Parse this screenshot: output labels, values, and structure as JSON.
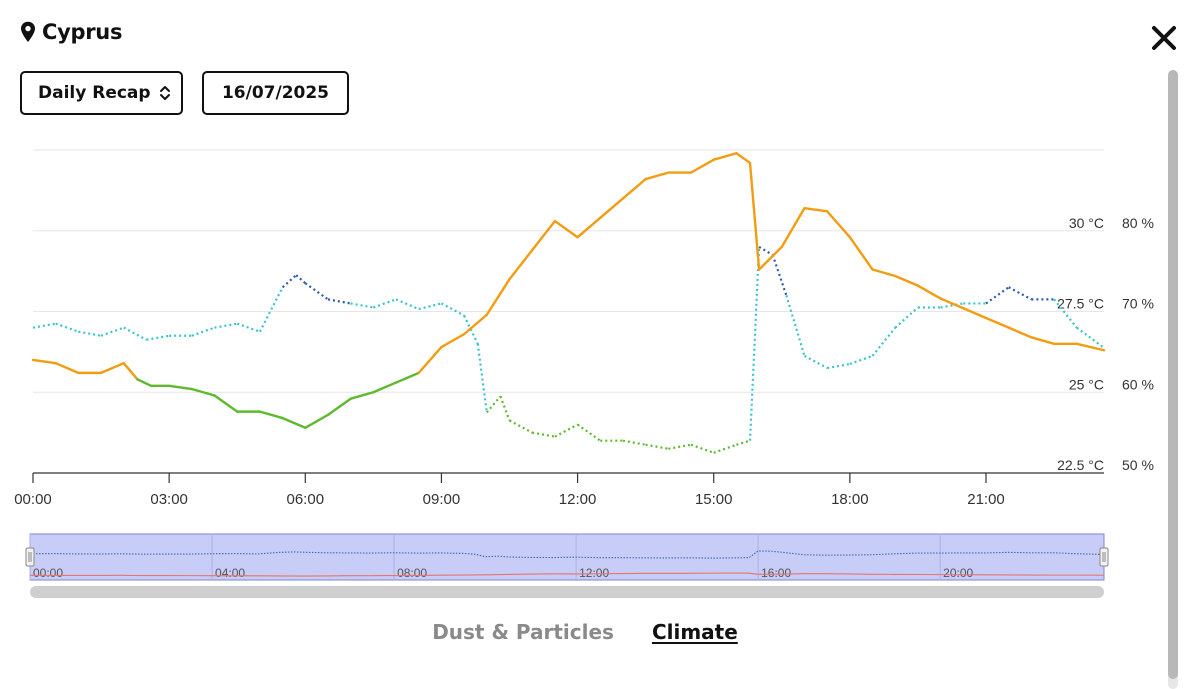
{
  "header": {
    "location": "Cyprus",
    "icon": "map-pin-icon",
    "close_icon": "close-icon"
  },
  "controls": {
    "mode_label": "Daily Recap",
    "mode_icon": "chevron-up-down-icon",
    "date_value": "16/07/2025"
  },
  "tabs": [
    {
      "label": "Dust & Particles",
      "active": false
    },
    {
      "label": "Climate",
      "active": true
    }
  ],
  "colors": {
    "temperature_line": "#f39c12",
    "temperature_low": "#5dba2f",
    "humidity_high": "#2a5bb0",
    "humidity_mid": "#38c3cf",
    "humidity_low": "#5dba2f",
    "navigator_fill": "#c7cdf7"
  },
  "chart_data": {
    "type": "line",
    "x_tick_labels": [
      "00:00",
      "03:00",
      "06:00",
      "09:00",
      "12:00",
      "15:00",
      "18:00",
      "21:00"
    ],
    "x_ticks_hours": [
      0,
      3,
      6,
      9,
      12,
      15,
      18,
      21
    ],
    "xlim_hours": [
      0,
      23.6
    ],
    "y_temperature": {
      "ticks": [
        "22.5 °C",
        "25 °C",
        "27.5 °C",
        "30 °C"
      ],
      "tick_values": [
        22.5,
        25,
        27.5,
        30
      ],
      "ylim": [
        22.5,
        30
      ]
    },
    "y_humidity": {
      "ticks": [
        "50 %",
        "60 %",
        "70 %",
        "80 %"
      ],
      "tick_values": [
        50,
        60,
        70,
        80
      ],
      "ylim": [
        50,
        80
      ]
    },
    "series": [
      {
        "axis": "temperature",
        "style": "solid",
        "x": [
          0,
          0.5,
          1,
          1.5,
          2,
          2.3,
          2.6,
          3,
          3.5,
          4,
          4.5,
          5,
          5.5,
          6,
          6.5,
          7,
          7.5,
          8,
          8.5,
          9,
          9.5,
          10,
          10.5,
          11,
          11.5,
          12,
          12.5,
          13,
          13.5,
          14,
          14.5,
          15,
          15.5,
          15.8,
          16,
          16.5,
          17,
          17.5,
          18,
          18.5,
          19,
          19.5,
          20,
          20.5,
          21,
          21.5,
          22,
          22.5,
          23,
          23.6
        ],
        "y": [
          26.0,
          25.9,
          25.6,
          25.6,
          25.9,
          25.4,
          25.2,
          25.2,
          25.1,
          24.9,
          24.4,
          24.4,
          24.2,
          23.9,
          24.3,
          24.8,
          25.0,
          25.3,
          25.6,
          26.4,
          26.8,
          27.4,
          28.5,
          29.4,
          30.3,
          29.8,
          30.4,
          31.0,
          31.6,
          31.8,
          31.8,
          32.2,
          32.4,
          32.1,
          28.8,
          29.5,
          30.7,
          30.6,
          29.8,
          28.8,
          28.6,
          28.3,
          27.9,
          27.6,
          27.3,
          27.0,
          26.7,
          26.5,
          26.5,
          26.3
        ]
      },
      {
        "axis": "humidity",
        "style": "dotted",
        "x": [
          0,
          0.5,
          1,
          1.5,
          2,
          2.5,
          3,
          3.5,
          4,
          4.5,
          5,
          5.5,
          5.8,
          6,
          6.5,
          7,
          7.5,
          8,
          8.5,
          9,
          9.5,
          9.8,
          10,
          10.3,
          10.5,
          11,
          11.5,
          12,
          12.5,
          13,
          13.5,
          14,
          14.5,
          15,
          15.5,
          15.8,
          16,
          16.3,
          16.6,
          17,
          17.5,
          18,
          18.5,
          19,
          19.5,
          20,
          20.5,
          21,
          21.5,
          22,
          22.5,
          23,
          23.6
        ],
        "y": [
          68,
          68.5,
          67.5,
          67,
          68,
          66.5,
          67,
          67,
          68,
          68.5,
          67.5,
          73,
          74.5,
          73.5,
          71.5,
          71,
          70.5,
          71.5,
          70.3,
          71,
          69.5,
          66,
          57.5,
          59.5,
          56.5,
          55,
          54.5,
          56,
          54,
          54,
          53.5,
          53,
          53.5,
          52.5,
          53.5,
          54,
          78,
          77,
          72,
          64.5,
          63,
          63.5,
          64.5,
          68,
          70.5,
          70.5,
          71,
          71,
          73,
          71.5,
          71.5,
          68,
          65.5
        ]
      }
    ]
  }
}
